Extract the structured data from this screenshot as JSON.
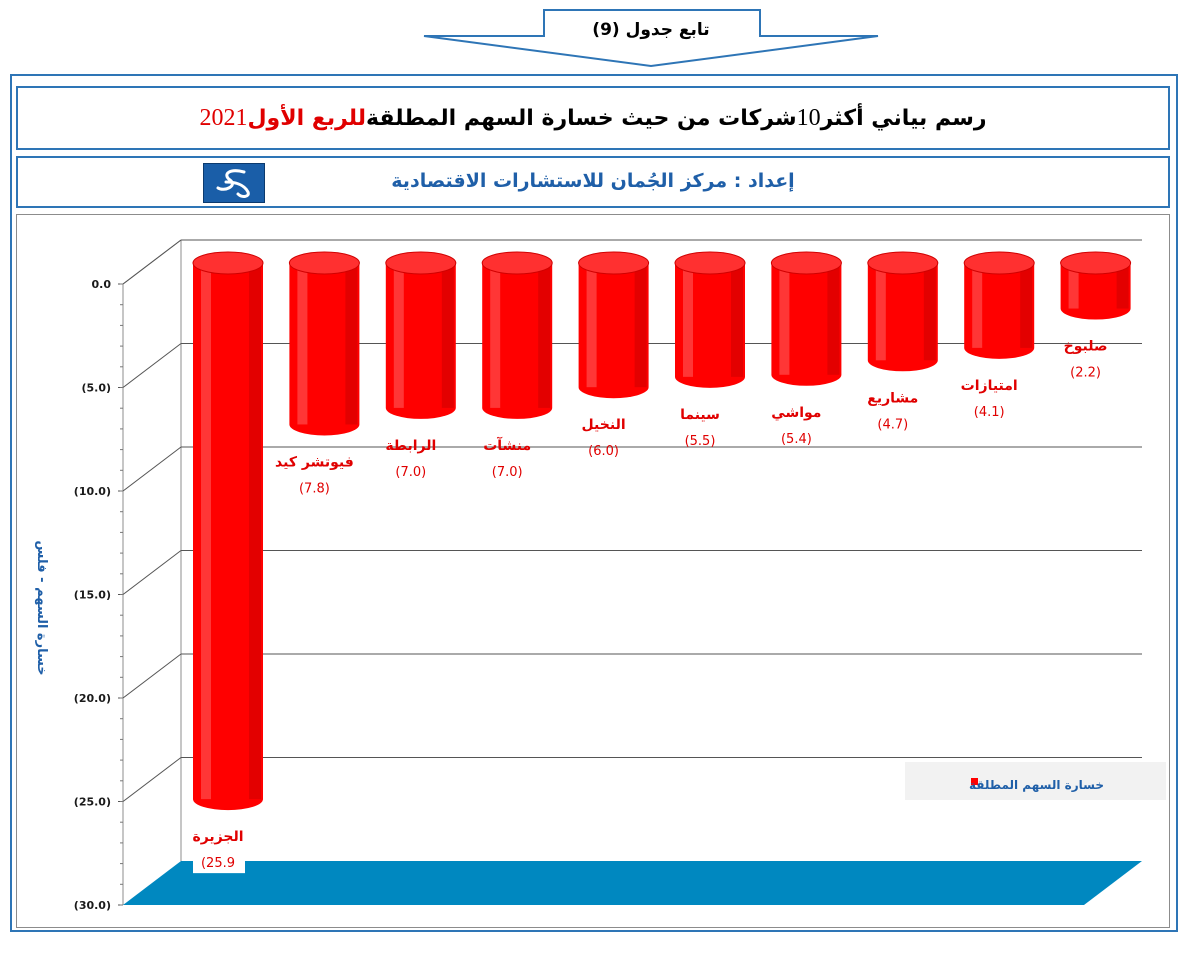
{
  "header_arrow": {
    "label": "تابع جدول (9)"
  },
  "title": {
    "part1": "رسم بياني أكثر ",
    "num": "10",
    "part2": " شركات من حيث خسارة السهم المطلقة ",
    "highlight": "للربع الأول",
    "year": " 2021"
  },
  "subtitle": {
    "label": "إعداد",
    "sep": " : ",
    "text": "مركز الجُمان للاستشارات الاقتصادية"
  },
  "colors": {
    "bar": "#ff0000",
    "floor": "#0088c0",
    "accent_border": "#2e75b6",
    "label_red": "#e00000"
  },
  "chart_data": {
    "type": "bar",
    "categories": [
      "الجزيرة",
      "فيوتشر كيد",
      "الرابطة",
      "منشآت",
      "النخيل",
      "سينما",
      "مواشي",
      "مشاريع",
      "امتيازات",
      "صلبوخ"
    ],
    "series": [
      {
        "name": "خسارة السهم المطلقة",
        "values": [
          -25.9,
          -7.8,
          -7.0,
          -7.0,
          -6.0,
          -5.5,
          -5.4,
          -4.7,
          -4.1,
          -2.2
        ]
      }
    ],
    "value_labels": [
      "(25.9",
      "(7.8)",
      "(7.0)",
      "(7.0)",
      "(6.0)",
      "(5.5)",
      "(5.4)",
      "(4.7)",
      "(4.1)",
      "(2.2)"
    ],
    "ylabel": "خسارة السهم - فلس",
    "ylim": [
      -30,
      0
    ],
    "yticks": [
      0,
      -5,
      -10,
      -15,
      -20,
      -25,
      -30
    ],
    "ytick_labels": [
      "0.0",
      "(5.0)",
      "(10.0)",
      "(15.0)",
      "(20.0)",
      "(25.0)",
      "(30.0)"
    ],
    "grid": true,
    "legend": {
      "position": "right",
      "label": "خسارة السهم المطلقة"
    }
  }
}
